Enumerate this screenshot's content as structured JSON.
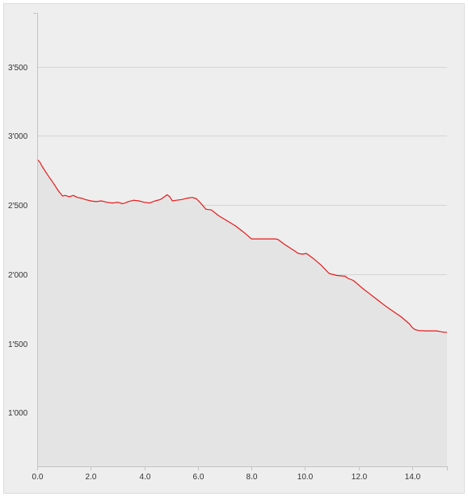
{
  "chart_data": {
    "type": "area",
    "title": "",
    "xlabel": "",
    "ylabel": "",
    "xlim": [
      0,
      15.3
    ],
    "ylim": [
      610,
      3890
    ],
    "grid": true,
    "x_ticks": [
      {
        "value": 0,
        "label": "0.0"
      },
      {
        "value": 2,
        "label": "2.0"
      },
      {
        "value": 4,
        "label": "4.0"
      },
      {
        "value": 6,
        "label": "6.0"
      },
      {
        "value": 8,
        "label": "8.0"
      },
      {
        "value": 10,
        "label": "10.0"
      },
      {
        "value": 12,
        "label": "12.0"
      },
      {
        "value": 14,
        "label": "14.0"
      }
    ],
    "y_ticks": [
      {
        "value": 1000,
        "label": "1'000"
      },
      {
        "value": 1500,
        "label": "1'500"
      },
      {
        "value": 2000,
        "label": "2'000"
      },
      {
        "value": 2500,
        "label": "2'500"
      },
      {
        "value": 3000,
        "label": "3'000"
      },
      {
        "value": 3500,
        "label": "3'500"
      }
    ],
    "colors": {
      "line": "#e8191b",
      "fill": "#e4e4e4",
      "grid": "#d4d4d4",
      "axis": "#c4c4c4"
    },
    "series": [
      {
        "x": [
          0.0,
          0.1,
          0.2,
          0.4,
          0.6,
          0.8,
          0.95,
          1.05,
          1.2,
          1.35,
          1.5,
          1.65,
          1.8,
          2.0,
          2.2,
          2.4,
          2.6,
          2.8,
          3.0,
          3.2,
          3.4,
          3.6,
          3.8,
          4.0,
          4.2,
          4.4,
          4.6,
          4.75,
          4.85,
          4.95,
          5.05,
          5.2,
          5.4,
          5.6,
          5.8,
          5.95,
          6.1,
          6.3,
          6.5,
          6.8,
          7.1,
          7.4,
          7.7,
          8.0,
          8.2,
          8.5,
          8.9,
          9.0,
          9.2,
          9.6,
          9.75,
          9.9,
          10.05,
          10.3,
          10.6,
          10.9,
          11.2,
          11.5,
          11.6,
          11.8,
          12.1,
          12.4,
          12.7,
          13.0,
          13.3,
          13.6,
          13.9,
          14.0,
          14.1,
          14.25,
          14.5,
          14.7,
          14.9,
          15.0,
          15.1,
          15.2,
          15.3
        ],
        "y": [
          2830,
          2810,
          2775,
          2715,
          2660,
          2600,
          2565,
          2570,
          2560,
          2570,
          2555,
          2550,
          2540,
          2530,
          2525,
          2530,
          2520,
          2515,
          2520,
          2510,
          2525,
          2535,
          2530,
          2520,
          2515,
          2530,
          2540,
          2560,
          2575,
          2560,
          2530,
          2535,
          2540,
          2550,
          2555,
          2545,
          2515,
          2470,
          2465,
          2420,
          2385,
          2350,
          2305,
          2255,
          2255,
          2255,
          2255,
          2250,
          2220,
          2170,
          2150,
          2145,
          2150,
          2115,
          2065,
          2005,
          1990,
          1985,
          1970,
          1955,
          1905,
          1860,
          1815,
          1770,
          1730,
          1690,
          1640,
          1615,
          1600,
          1592,
          1590,
          1590,
          1590,
          1587,
          1583,
          1580,
          1580
        ]
      }
    ]
  }
}
